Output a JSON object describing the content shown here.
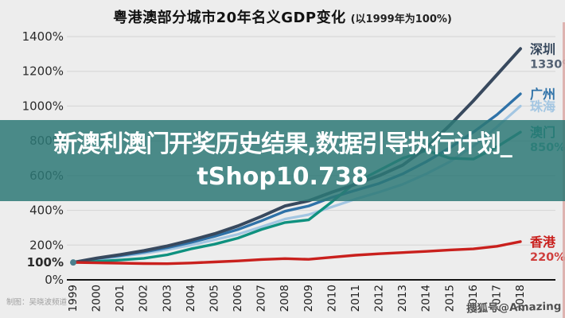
{
  "title": {
    "main": "粤港澳部分城市20年名义GDP变化",
    "note": "(以1999年为100%)"
  },
  "overlay": {
    "line1": "新澳利澳门开奖历史结果,数据引导执行计划_",
    "line2": "tShop10.738",
    "bg_color": "#2d7875"
  },
  "watermark": "搜狐号@Amazing",
  "credit": "制图：吴晓波频道",
  "chart_data": {
    "type": "line",
    "title": "粤港澳部分城市20年名义GDP变化 (以1999年为100%)",
    "xlabel": "",
    "ylabel": "",
    "ylim": [
      0,
      1400
    ],
    "grid": true,
    "legend_position": "right-of-line-ends",
    "x": [
      1999,
      2000,
      2001,
      2002,
      2003,
      2004,
      2005,
      2006,
      2007,
      2008,
      2009,
      2010,
      2011,
      2012,
      2013,
      2014,
      2015,
      2016,
      2017,
      2018
    ],
    "yticks": [
      {
        "label": "1400%",
        "value": 1400,
        "bold": false,
        "grid": true
      },
      {
        "label": "1200%",
        "value": 1200,
        "bold": false,
        "grid": true
      },
      {
        "label": "1000%",
        "value": 1000,
        "bold": false,
        "grid": true
      },
      {
        "label": "800%",
        "value": 800,
        "bold": false,
        "grid": true
      },
      {
        "label": "600%",
        "value": 600,
        "bold": false,
        "grid": true
      },
      {
        "label": "400%",
        "value": 400,
        "bold": false,
        "grid": true
      },
      {
        "label": "200%",
        "value": 200,
        "bold": false,
        "grid": true
      },
      {
        "label": "100%",
        "value": 100,
        "bold": true,
        "grid": false
      },
      {
        "label": "0%",
        "value": 0,
        "bold": false,
        "grid": false
      }
    ],
    "series": [
      {
        "key": "zhuhai",
        "name": "珠海",
        "end_label": null,
        "color": "#a3c6e2",
        "width": 3.2,
        "values": [
          100,
          118,
          134,
          152,
          174,
          200,
          230,
          262,
          305,
          350,
          375,
          420,
          465,
          505,
          550,
          610,
          680,
          770,
          880,
          1000
        ]
      },
      {
        "key": "guangzhou",
        "name": "广州",
        "end_label": null,
        "color": "#2f72a8",
        "width": 3.4,
        "values": [
          100,
          122,
          140,
          160,
          185,
          215,
          250,
          290,
          340,
          395,
          425,
          475,
          515,
          555,
          610,
          680,
          760,
          850,
          950,
          1070
        ]
      },
      {
        "key": "macau",
        "name": "澳门",
        "end_label": "850%",
        "color": "#0f917f",
        "width": 3.4,
        "values": [
          100,
          106,
          114,
          124,
          144,
          178,
          205,
          240,
          290,
          330,
          345,
          450,
          560,
          630,
          700,
          745,
          700,
          695,
          765,
          850
        ]
      },
      {
        "key": "shenzhen",
        "name": "深圳",
        "end_label": "1330%",
        "color": "#38495e",
        "width": 4,
        "values": [
          100,
          125,
          145,
          168,
          195,
          228,
          265,
          310,
          365,
          425,
          455,
          505,
          550,
          600,
          660,
          760,
          890,
          1030,
          1180,
          1330
        ]
      },
      {
        "key": "hongkong",
        "name": "香港",
        "end_label": "220%",
        "color": "#c9201d",
        "width": 3.4,
        "values": [
          100,
          98,
          96,
          94,
          93,
          97,
          103,
          109,
          117,
          122,
          118,
          130,
          142,
          150,
          157,
          164,
          172,
          178,
          193,
          220
        ]
      }
    ],
    "start_marker": {
      "x": 1999,
      "value": 100,
      "color": "#4b7f8d"
    }
  }
}
